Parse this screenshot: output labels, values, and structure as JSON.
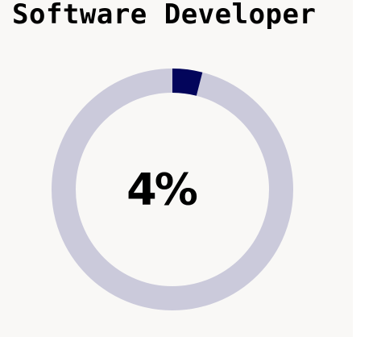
{
  "title": "Software Developer",
  "percent_label": "4%",
  "colors": {
    "background": "#f9f8f6",
    "track": "#cbcadb",
    "fill": "#03055b",
    "text": "#000000"
  },
  "chart_data": {
    "type": "pie",
    "title": "Software Developer",
    "style": "donut",
    "center_label": "4%",
    "slices": [
      {
        "value": 4,
        "color": "#03055b"
      },
      {
        "value": 96,
        "color": "#cbcadb"
      }
    ]
  }
}
